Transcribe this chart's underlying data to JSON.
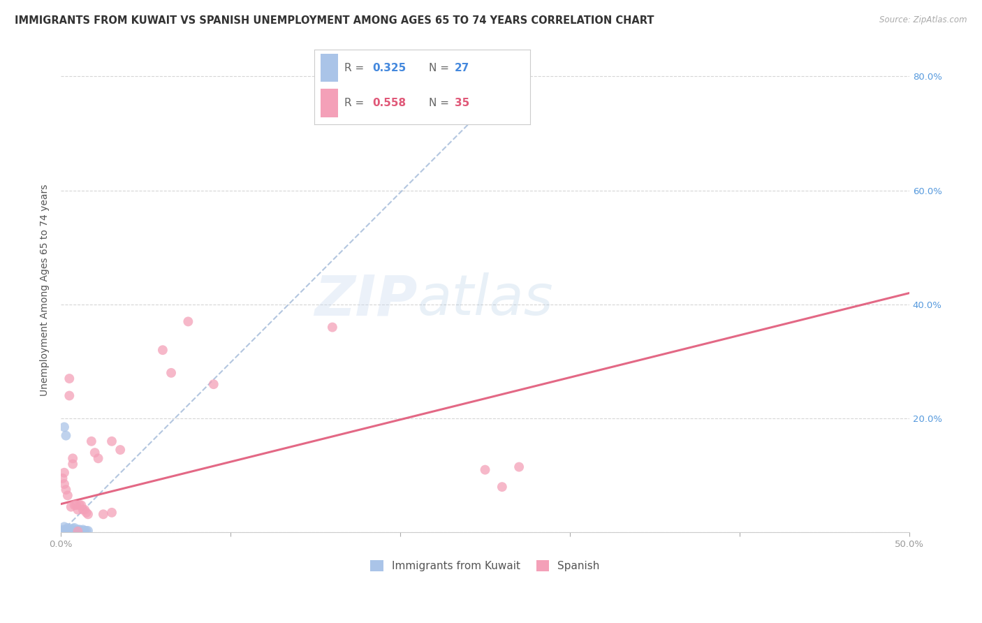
{
  "title": "IMMIGRANTS FROM KUWAIT VS SPANISH UNEMPLOYMENT AMONG AGES 65 TO 74 YEARS CORRELATION CHART",
  "source": "Source: ZipAtlas.com",
  "ylabel": "Unemployment Among Ages 65 to 74 years",
  "xlim": [
    0.0,
    0.5
  ],
  "ylim": [
    0.0,
    0.85
  ],
  "xticks": [
    0.0,
    0.1,
    0.2,
    0.3,
    0.4,
    0.5
  ],
  "yticks": [
    0.0,
    0.2,
    0.4,
    0.6,
    0.8
  ],
  "xticklabels": [
    "0.0%",
    "",
    "",
    "",
    "",
    "50.0%"
  ],
  "yticklabels_right": [
    "",
    "20.0%",
    "40.0%",
    "60.0%",
    "80.0%"
  ],
  "legend_r1": "0.325",
  "legend_n1": "27",
  "legend_r2": "0.558",
  "legend_n2": "35",
  "blue_color": "#aac4e8",
  "pink_color": "#f4a0b8",
  "blue_line_color": "#a0b8d8",
  "pink_line_color": "#e05878",
  "watermark_zip": "ZIP",
  "watermark_atlas": "atlas",
  "kuwait_points": [
    [
      0.002,
      0.185
    ],
    [
      0.003,
      0.17
    ],
    [
      0.001,
      0.003
    ],
    [
      0.002,
      0.002
    ],
    [
      0.003,
      0.002
    ],
    [
      0.003,
      0.005
    ],
    [
      0.004,
      0.003
    ],
    [
      0.004,
      0.008
    ],
    [
      0.005,
      0.003
    ],
    [
      0.005,
      0.005
    ],
    [
      0.006,
      0.003
    ],
    [
      0.006,
      0.005
    ],
    [
      0.007,
      0.003
    ],
    [
      0.007,
      0.007
    ],
    [
      0.008,
      0.003
    ],
    [
      0.008,
      0.008
    ],
    [
      0.009,
      0.003
    ],
    [
      0.01,
      0.005
    ],
    [
      0.011,
      0.005
    ],
    [
      0.012,
      0.003
    ],
    [
      0.013,
      0.005
    ],
    [
      0.014,
      0.003
    ],
    [
      0.015,
      0.003
    ],
    [
      0.016,
      0.003
    ],
    [
      0.001,
      0.005
    ],
    [
      0.002,
      0.01
    ],
    [
      0.001,
      0.002
    ]
  ],
  "spanish_points": [
    [
      0.001,
      0.095
    ],
    [
      0.002,
      0.105
    ],
    [
      0.002,
      0.085
    ],
    [
      0.003,
      0.075
    ],
    [
      0.004,
      0.065
    ],
    [
      0.005,
      0.27
    ],
    [
      0.005,
      0.24
    ],
    [
      0.006,
      0.045
    ],
    [
      0.007,
      0.12
    ],
    [
      0.007,
      0.13
    ],
    [
      0.008,
      0.048
    ],
    [
      0.009,
      0.048
    ],
    [
      0.01,
      0.04
    ],
    [
      0.011,
      0.048
    ],
    [
      0.012,
      0.048
    ],
    [
      0.013,
      0.04
    ],
    [
      0.014,
      0.04
    ],
    [
      0.015,
      0.035
    ],
    [
      0.016,
      0.032
    ],
    [
      0.018,
      0.16
    ],
    [
      0.02,
      0.14
    ],
    [
      0.022,
      0.13
    ],
    [
      0.025,
      0.032
    ],
    [
      0.03,
      0.16
    ],
    [
      0.035,
      0.145
    ],
    [
      0.06,
      0.32
    ],
    [
      0.065,
      0.28
    ],
    [
      0.075,
      0.37
    ],
    [
      0.09,
      0.26
    ],
    [
      0.25,
      0.11
    ],
    [
      0.27,
      0.115
    ],
    [
      0.26,
      0.08
    ],
    [
      0.16,
      0.36
    ],
    [
      0.01,
      0.002
    ],
    [
      0.03,
      0.035
    ]
  ],
  "blue_trendline": [
    [
      0.0,
      0.0
    ],
    [
      0.275,
      0.82
    ]
  ],
  "pink_trendline": [
    [
      0.0,
      0.05
    ],
    [
      0.5,
      0.42
    ]
  ],
  "marker_size": 100,
  "title_fontsize": 10.5,
  "axis_label_fontsize": 10,
  "tick_fontsize": 9.5
}
